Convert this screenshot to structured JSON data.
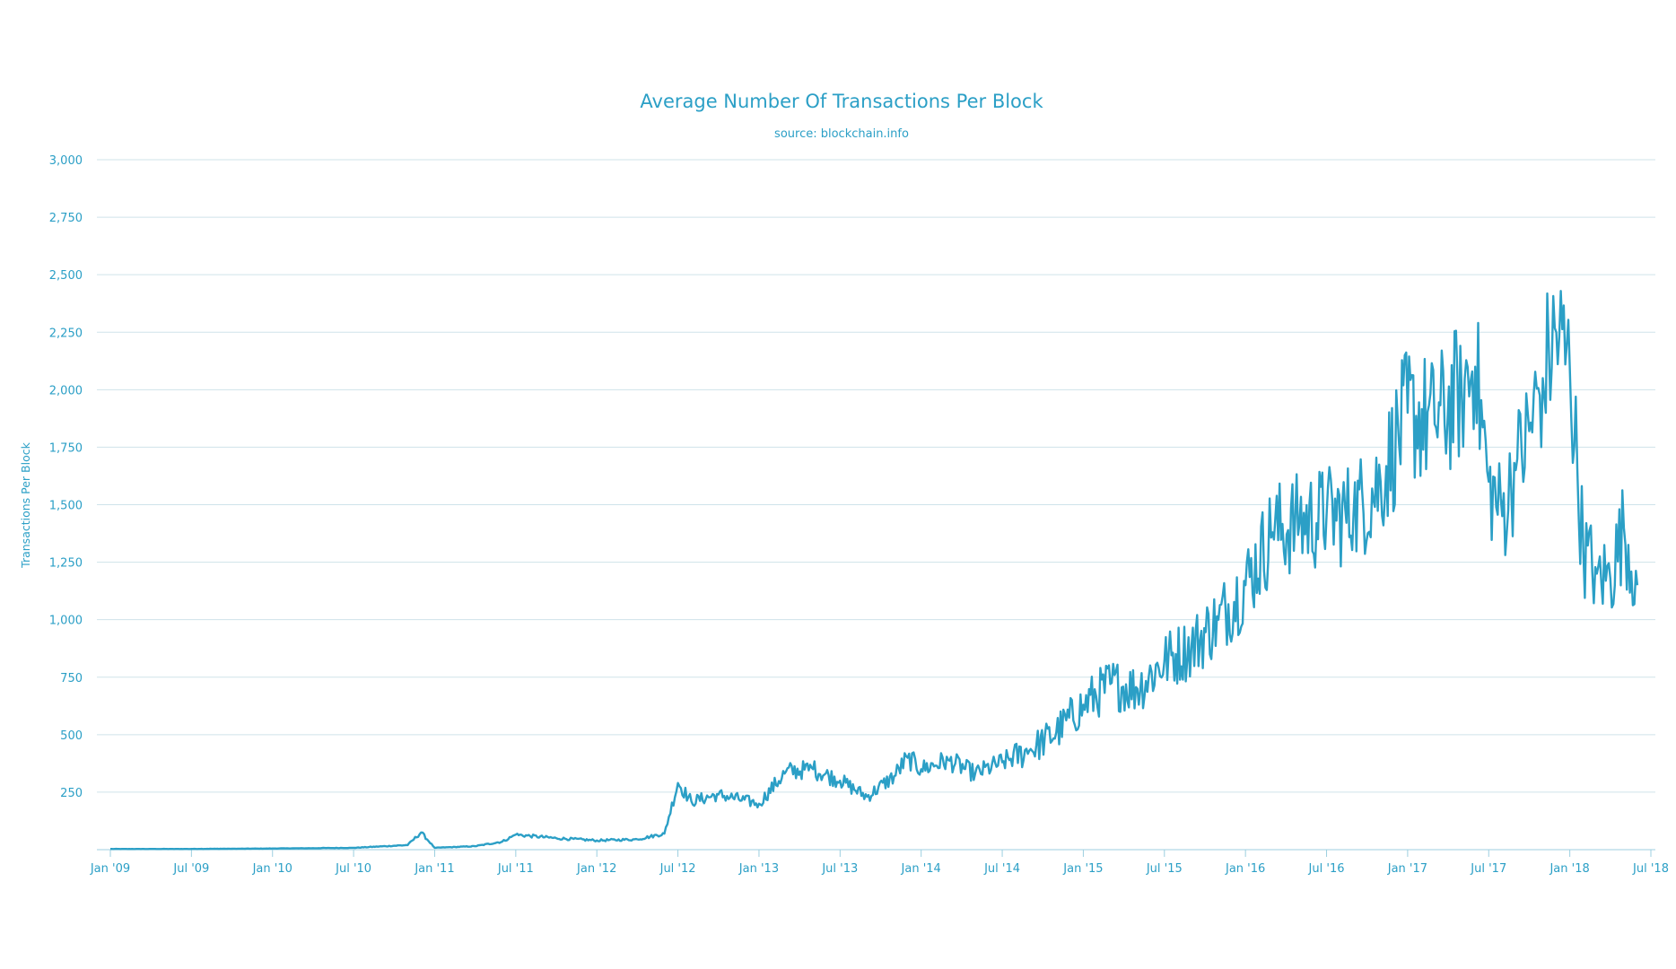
{
  "chart_data": {
    "type": "line",
    "title": "Average Number Of Transactions Per Block",
    "subtitle": "source: blockchain.info",
    "xlabel": "",
    "ylabel": "Transactions Per Block",
    "y_ticks": [
      "250",
      "500",
      "750",
      "1,000",
      "1,250",
      "1,500",
      "1,750",
      "2,000",
      "2,250",
      "2,500",
      "2,750",
      "3,000"
    ],
    "x_ticks": [
      "Jan '09",
      "Jul '09",
      "Jan '10",
      "Jul '10",
      "Jan '11",
      "Jul '11",
      "Jan '12",
      "Jul '12",
      "Jan '13",
      "Jul '13",
      "Jan '14",
      "Jul '14",
      "Jan '15",
      "Jul '15",
      "Jan '16",
      "Jul '16",
      "Jan '17",
      "Jul '17",
      "Jan '18",
      "Jul '18"
    ],
    "ylim": [
      0,
      3000
    ],
    "xlim": [
      "2009-01",
      "2018-07"
    ],
    "grid": true,
    "legend": "none",
    "line_color": "#2b9fc6",
    "series": [
      {
        "x": [
          "2009-01",
          "2009-07",
          "2010-01",
          "2010-07",
          "2010-11",
          "2010-12",
          "2011-01",
          "2011-04",
          "2011-06",
          "2011-07",
          "2011-10",
          "2012-01",
          "2012-04",
          "2012-06",
          "2012-07",
          "2012-08",
          "2012-10",
          "2013-01",
          "2013-03",
          "2013-05",
          "2013-07",
          "2013-09",
          "2013-11",
          "2013-12",
          "2014-01",
          "2014-03",
          "2014-05",
          "2014-07",
          "2014-09",
          "2014-11",
          "2015-01",
          "2015-03",
          "2015-05",
          "2015-07",
          "2015-09",
          "2015-11",
          "2016-01",
          "2016-03",
          "2016-05",
          "2016-07",
          "2016-09",
          "2016-11",
          "2017-01",
          "2017-03",
          "2017-05",
          "2017-06",
          "2017-07",
          "2017-08",
          "2017-09",
          "2017-10",
          "2017-11",
          "2017-12",
          "2018-01",
          "2018-02",
          "2018-03",
          "2018-04",
          "2018-05",
          "2018-06"
        ],
        "y": [
          3,
          3,
          5,
          8,
          20,
          75,
          8,
          15,
          35,
          65,
          50,
          40,
          45,
          70,
          290,
          210,
          240,
          200,
          340,
          350,
          300,
          230,
          320,
          400,
          350,
          390,
          330,
          380,
          430,
          510,
          630,
          720,
          700,
          820,
          880,
          1000,
          1150,
          1380,
          1420,
          1450,
          1460,
          1600,
          1900,
          1850,
          2000,
          2100,
          1600,
          1450,
          1650,
          1820,
          2050,
          2250,
          2100,
          1300,
          1200,
          1180,
          1400,
          1150
        ]
      }
    ]
  }
}
